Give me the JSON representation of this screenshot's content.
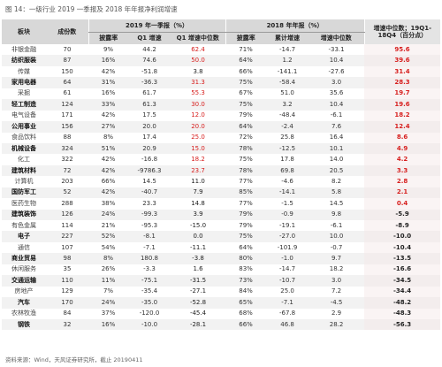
{
  "caption": "图 14：一级行业 2019 一季报及 2018 年年报净利润增速",
  "footer": "资料来源：Wind，天风证券研究所，截止 20190411",
  "colors": {
    "red": "#d7201f",
    "header_bg": "#d8d8d8",
    "row_alt": "#f2f2f2"
  },
  "headers": {
    "industry": "板块",
    "count": "成份数",
    "q1_group": "2019 年一季报（%）",
    "fy_group": "2018 年年报（%）",
    "change_group": "增速中位数；19Q1-18Q4（百分点）",
    "q1_up": "披露率",
    "q1_growth": "Q1 增速",
    "q1_median": "Q1 增速中位数",
    "fy_up": "披露率",
    "fy_growth": "累计增速",
    "fy_median": "增速中位数"
  },
  "rows": [
    {
      "name": "非银金融",
      "bold": false,
      "count": "70",
      "q1_rate": "9%",
      "q1_growth": "44.2",
      "q1_median": "62.4",
      "q1_red": true,
      "fy_rate": "71%",
      "fy_growth": "-14.7",
      "fy_median": "-33.1",
      "change": "95.6"
    },
    {
      "name": "纺织服装",
      "bold": true,
      "count": "87",
      "q1_rate": "16%",
      "q1_growth": "74.6",
      "q1_median": "50.0",
      "q1_red": true,
      "fy_rate": "64%",
      "fy_growth": "1.2",
      "fy_median": "10.4",
      "change": "39.6"
    },
    {
      "name": "传媒",
      "bold": false,
      "count": "150",
      "q1_rate": "42%",
      "q1_growth": "-51.8",
      "q1_median": "3.8",
      "q1_red": false,
      "fy_rate": "66%",
      "fy_growth": "-141.1",
      "fy_median": "-27.6",
      "change": "31.4"
    },
    {
      "name": "家用电器",
      "bold": true,
      "count": "64",
      "q1_rate": "31%",
      "q1_growth": "-36.3",
      "q1_median": "31.3",
      "q1_red": true,
      "fy_rate": "75%",
      "fy_growth": "-58.4",
      "fy_median": "3.0",
      "change": "28.3"
    },
    {
      "name": "采掘",
      "bold": false,
      "count": "61",
      "q1_rate": "16%",
      "q1_growth": "61.7",
      "q1_median": "55.3",
      "q1_red": true,
      "fy_rate": "67%",
      "fy_growth": "51.0",
      "fy_median": "35.6",
      "change": "19.7"
    },
    {
      "name": "轻工制造",
      "bold": true,
      "count": "124",
      "q1_rate": "33%",
      "q1_growth": "61.3",
      "q1_median": "30.0",
      "q1_red": true,
      "fy_rate": "75%",
      "fy_growth": "3.2",
      "fy_median": "10.4",
      "change": "19.6"
    },
    {
      "name": "电气设备",
      "bold": false,
      "count": "171",
      "q1_rate": "42%",
      "q1_growth": "17.5",
      "q1_median": "12.0",
      "q1_red": true,
      "fy_rate": "79%",
      "fy_growth": "-48.4",
      "fy_median": "-6.1",
      "change": "18.2"
    },
    {
      "name": "公用事业",
      "bold": true,
      "count": "156",
      "q1_rate": "27%",
      "q1_growth": "20.0",
      "q1_median": "20.0",
      "q1_red": true,
      "fy_rate": "64%",
      "fy_growth": "-2.4",
      "fy_median": "7.6",
      "change": "12.4"
    },
    {
      "name": "食品饮料",
      "bold": false,
      "count": "88",
      "q1_rate": "8%",
      "q1_growth": "17.4",
      "q1_median": "25.0",
      "q1_red": true,
      "fy_rate": "72%",
      "fy_growth": "25.8",
      "fy_median": "16.4",
      "change": "8.6"
    },
    {
      "name": "机械设备",
      "bold": true,
      "count": "324",
      "q1_rate": "51%",
      "q1_growth": "20.9",
      "q1_median": "15.0",
      "q1_red": true,
      "fy_rate": "78%",
      "fy_growth": "-12.5",
      "fy_median": "10.1",
      "change": "4.9"
    },
    {
      "name": "化工",
      "bold": false,
      "count": "322",
      "q1_rate": "42%",
      "q1_growth": "-16.8",
      "q1_median": "18.2",
      "q1_red": true,
      "fy_rate": "75%",
      "fy_growth": "17.8",
      "fy_median": "14.0",
      "change": "4.2"
    },
    {
      "name": "建筑材料",
      "bold": true,
      "count": "72",
      "q1_rate": "42%",
      "q1_growth": "-9786.3",
      "q1_median": "23.7",
      "q1_red": true,
      "fy_rate": "78%",
      "fy_growth": "69.8",
      "fy_median": "20.5",
      "change": "3.3"
    },
    {
      "name": "计算机",
      "bold": false,
      "count": "203",
      "q1_rate": "66%",
      "q1_growth": "14.5",
      "q1_median": "11.0",
      "q1_red": false,
      "fy_rate": "77%",
      "fy_growth": "-4.6",
      "fy_median": "8.2",
      "change": "2.8"
    },
    {
      "name": "国防军工",
      "bold": true,
      "count": "52",
      "q1_rate": "42%",
      "q1_growth": "-40.7",
      "q1_median": "7.9",
      "q1_red": false,
      "fy_rate": "85%",
      "fy_growth": "-14.1",
      "fy_median": "5.8",
      "change": "2.1"
    },
    {
      "name": "医药生物",
      "bold": false,
      "count": "288",
      "q1_rate": "38%",
      "q1_growth": "23.3",
      "q1_median": "14.8",
      "q1_red": false,
      "fy_rate": "77%",
      "fy_growth": "-1.5",
      "fy_median": "14.5",
      "change": "0.4"
    },
    {
      "name": "建筑装饰",
      "bold": true,
      "count": "126",
      "q1_rate": "24%",
      "q1_growth": "-99.3",
      "q1_median": "3.9",
      "q1_red": false,
      "fy_rate": "79%",
      "fy_growth": "-0.9",
      "fy_median": "9.8",
      "change": "-5.9"
    },
    {
      "name": "有色金属",
      "bold": false,
      "count": "114",
      "q1_rate": "21%",
      "q1_growth": "-95.3",
      "q1_median": "-15.0",
      "q1_red": false,
      "fy_rate": "79%",
      "fy_growth": "-19.1",
      "fy_median": "-6.1",
      "change": "-8.9"
    },
    {
      "name": "电子",
      "bold": true,
      "count": "227",
      "q1_rate": "52%",
      "q1_growth": "-8.1",
      "q1_median": "0.0",
      "q1_red": false,
      "fy_rate": "75%",
      "fy_growth": "-27.0",
      "fy_median": "10.0",
      "change": "-10.0"
    },
    {
      "name": "通信",
      "bold": false,
      "count": "107",
      "q1_rate": "54%",
      "q1_growth": "-7.1",
      "q1_median": "-11.1",
      "q1_red": false,
      "fy_rate": "64%",
      "fy_growth": "-101.9",
      "fy_median": "-0.7",
      "change": "-10.4"
    },
    {
      "name": "商业贸易",
      "bold": true,
      "count": "98",
      "q1_rate": "8%",
      "q1_growth": "180.8",
      "q1_median": "-3.8",
      "q1_red": false,
      "fy_rate": "80%",
      "fy_growth": "-1.0",
      "fy_median": "9.7",
      "change": "-13.5"
    },
    {
      "name": "休闲服务",
      "bold": false,
      "count": "35",
      "q1_rate": "26%",
      "q1_growth": "-3.3",
      "q1_median": "1.6",
      "q1_red": false,
      "fy_rate": "83%",
      "fy_growth": "-14.7",
      "fy_median": "18.2",
      "change": "-16.6"
    },
    {
      "name": "交通运输",
      "bold": true,
      "count": "110",
      "q1_rate": "11%",
      "q1_growth": "-75.1",
      "q1_median": "-31.5",
      "q1_red": false,
      "fy_rate": "73%",
      "fy_growth": "-10.7",
      "fy_median": "3.0",
      "change": "-34.5"
    },
    {
      "name": "房地产",
      "bold": false,
      "count": "129",
      "q1_rate": "7%",
      "q1_growth": "-35.4",
      "q1_median": "-27.1",
      "q1_red": false,
      "fy_rate": "84%",
      "fy_growth": "25.0",
      "fy_median": "7.2",
      "change": "-34.4"
    },
    {
      "name": "汽车",
      "bold": true,
      "count": "170",
      "q1_rate": "24%",
      "q1_growth": "-35.0",
      "q1_median": "-52.8",
      "q1_red": false,
      "fy_rate": "65%",
      "fy_growth": "-7.1",
      "fy_median": "-4.5",
      "change": "-48.2"
    },
    {
      "name": "农林牧渔",
      "bold": false,
      "count": "84",
      "q1_rate": "37%",
      "q1_growth": "-120.0",
      "q1_median": "-45.4",
      "q1_red": false,
      "fy_rate": "68%",
      "fy_growth": "-67.8",
      "fy_median": "2.9",
      "change": "-48.3"
    },
    {
      "name": "钢铁",
      "bold": true,
      "count": "32",
      "q1_rate": "16%",
      "q1_growth": "-10.0",
      "q1_median": "-28.1",
      "q1_red": false,
      "fy_rate": "66%",
      "fy_growth": "46.8",
      "fy_median": "28.2",
      "change": "-56.3"
    }
  ]
}
